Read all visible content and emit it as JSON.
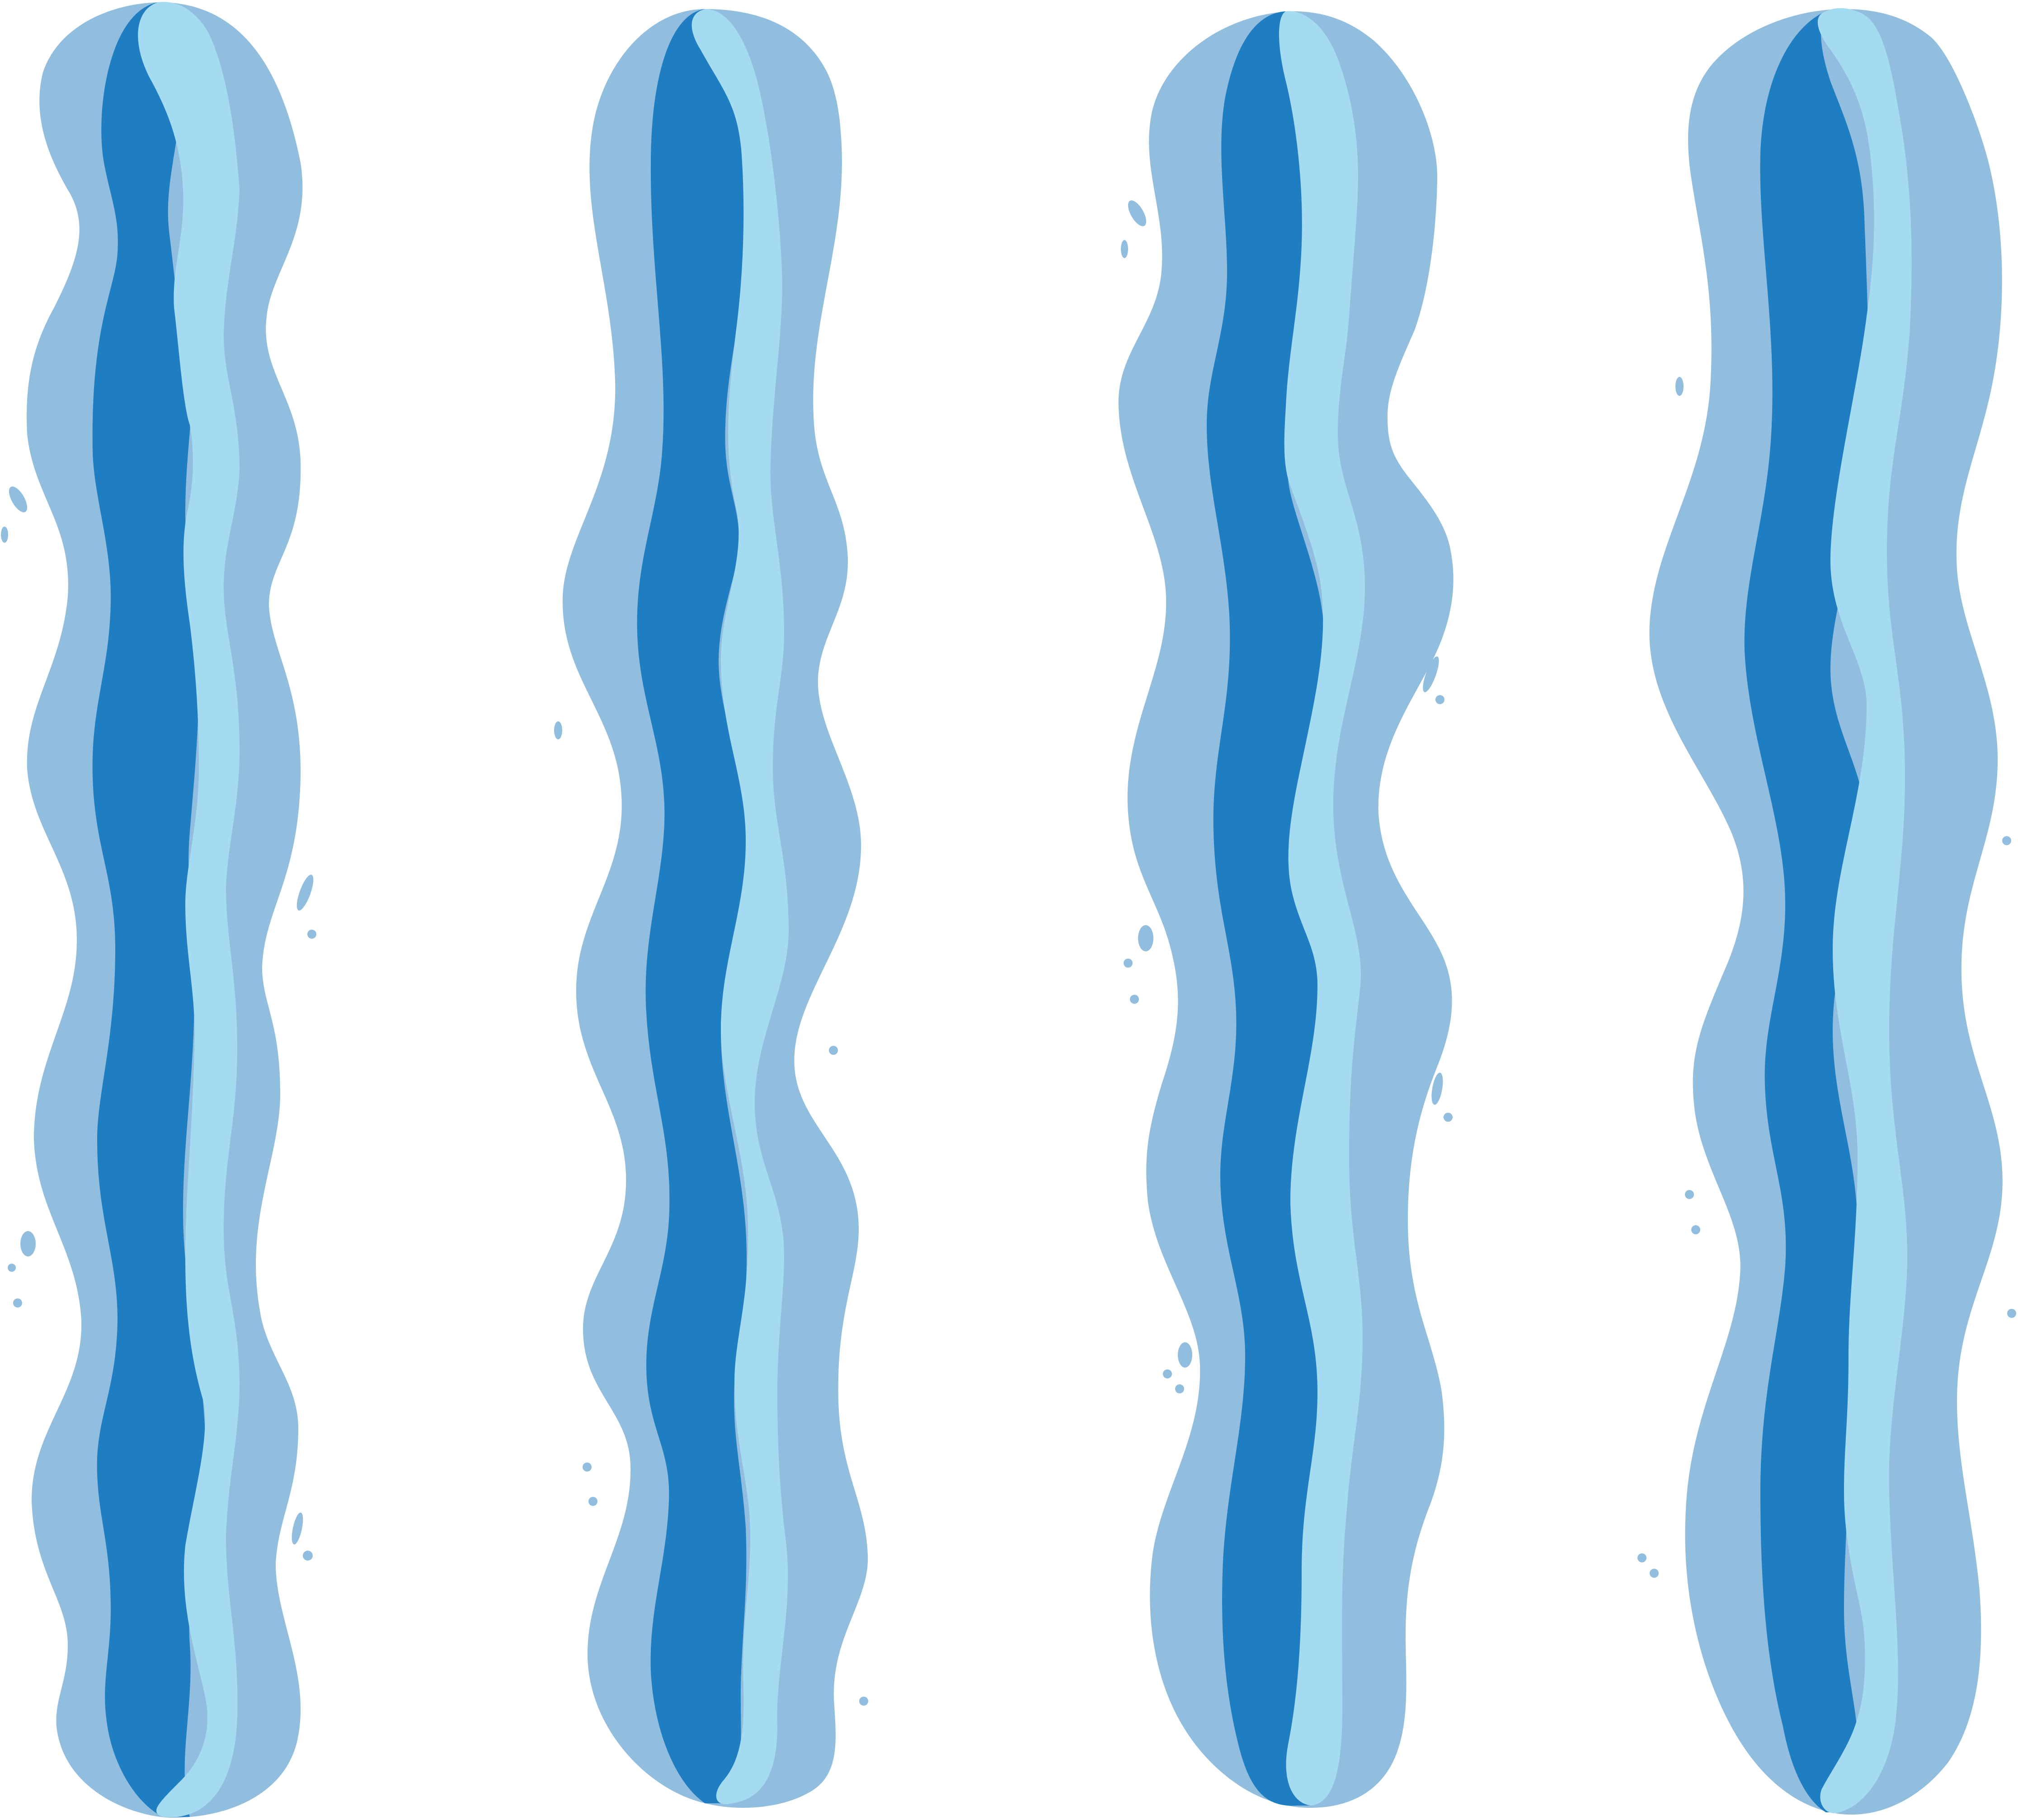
{
  "colors": {
    "background": "#ffffff",
    "outer": "#91bddf",
    "core": "#1f7dc1",
    "highlight": "#a5dbf0",
    "droplet": "#91bddf"
  },
  "illustration": {
    "stream_count": 4,
    "icons": [
      "water-stream-icon",
      "water-droplet-icon"
    ]
  }
}
